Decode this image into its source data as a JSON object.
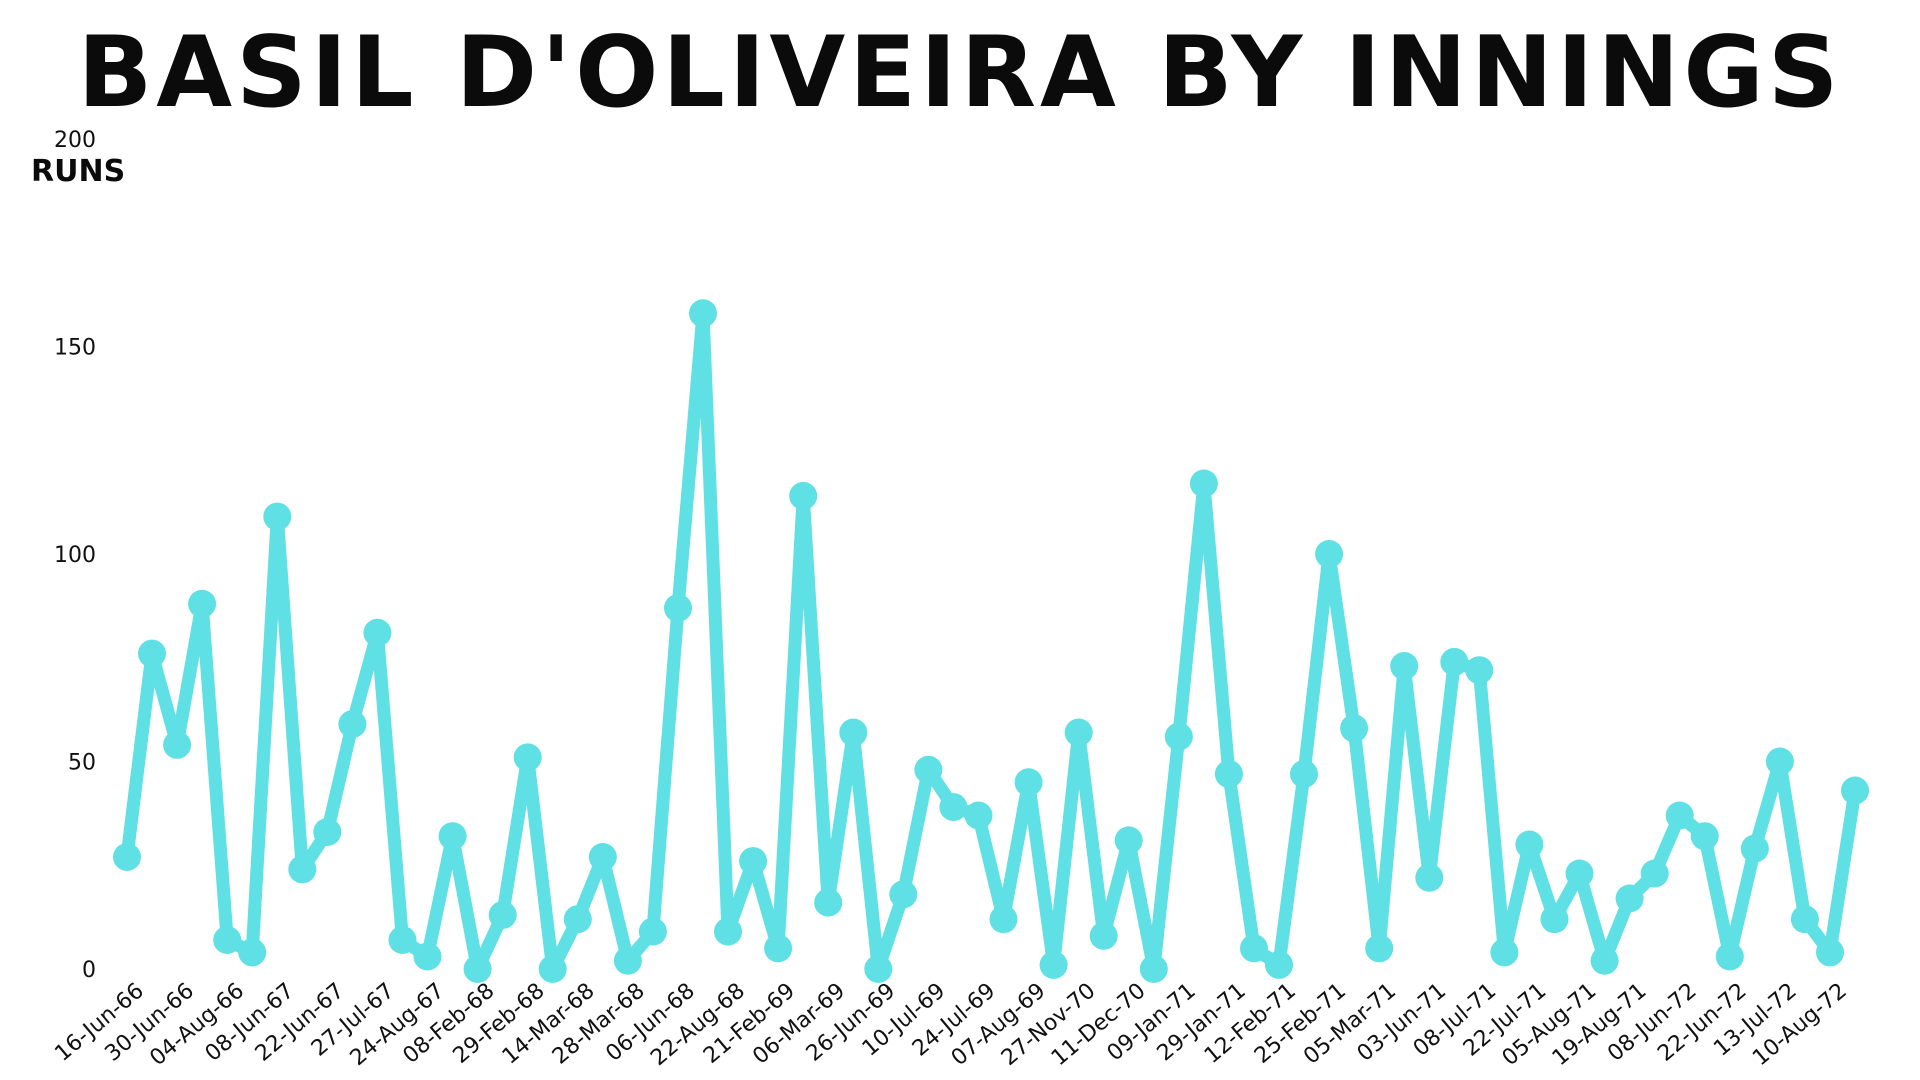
{
  "chart_data": {
    "type": "line",
    "title": "Basil D'Oliveira by Innings",
    "ylabel": "RUNS",
    "xlabel": "",
    "ylim": [
      0,
      200
    ],
    "yticks": [
      0,
      50,
      100,
      150,
      200
    ],
    "grid": false,
    "color": "#5ee0e4",
    "x_tick_labels": [
      "16-Jun-66",
      "30-Jun-66",
      "04-Aug-66",
      "08-Jun-67",
      "22-Jun-67",
      "27-Jul-67",
      "24-Aug-67",
      "08-Feb-68",
      "29-Feb-68",
      "14-Mar-68",
      "28-Mar-68",
      "06-Jun-68",
      "22-Aug-68",
      "21-Feb-69",
      "06-Mar-69",
      "26-Jun-69",
      "10-Jul-69",
      "24-Jul-69",
      "07-Aug-69",
      "27-Nov-70",
      "11-Dec-70",
      "09-Jan-71",
      "29-Jan-71",
      "12-Feb-71",
      "25-Feb-71",
      "05-Mar-71",
      "03-Jun-71",
      "08-Jul-71",
      "22-Jul-71",
      "05-Aug-71",
      "19-Aug-71",
      "08-Jun-72",
      "22-Jun-72",
      "13-Jul-72",
      "10-Aug-72"
    ],
    "series": [
      {
        "values": [
          27,
          76,
          54,
          88,
          7,
          4,
          109,
          24,
          33,
          59,
          81,
          7,
          3,
          32,
          0,
          13,
          51,
          0,
          12,
          27,
          2,
          9,
          87,
          158,
          9,
          26,
          5,
          114,
          16,
          57,
          0,
          18,
          48,
          39,
          37,
          12,
          45,
          1,
          57,
          8,
          31,
          0,
          56,
          117,
          47,
          5,
          1,
          47,
          100,
          58,
          5,
          73,
          22,
          74,
          72,
          4,
          30,
          12,
          23,
          2,
          17,
          23,
          37,
          32,
          3,
          29,
          50,
          12,
          4,
          43
        ]
      }
    ]
  }
}
